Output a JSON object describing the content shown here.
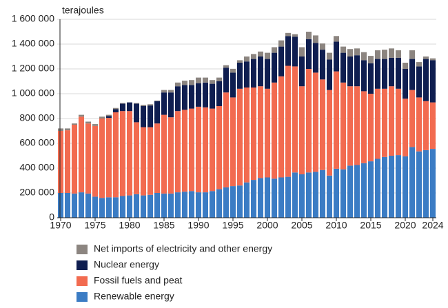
{
  "chart_data": {
    "type": "stacked_bar",
    "y_label": "terajoules",
    "x": [
      1970,
      1971,
      1972,
      1973,
      1974,
      1975,
      1976,
      1977,
      1978,
      1979,
      1980,
      1981,
      1982,
      1983,
      1984,
      1985,
      1986,
      1987,
      1988,
      1989,
      1990,
      1991,
      1992,
      1993,
      1994,
      1995,
      1996,
      1997,
      1998,
      1999,
      2000,
      2001,
      2002,
      2003,
      2004,
      2005,
      2006,
      2007,
      2008,
      2009,
      2010,
      2011,
      2012,
      2013,
      2014,
      2015,
      2016,
      2017,
      2018,
      2019,
      2020,
      2021,
      2022,
      2023,
      2024
    ],
    "xlim": [
      1969.5,
      2024.5
    ],
    "xticks": [
      1970,
      1975,
      1980,
      1985,
      1990,
      1995,
      2000,
      2005,
      2010,
      2015,
      2020,
      2024
    ],
    "ylim": [
      0,
      1600000
    ],
    "yticks": [
      0,
      {
        "value": 200000,
        "label": "200 000"
      },
      {
        "value": 400000,
        "label": "400 000"
      },
      {
        "value": 600000,
        "label": "600 000"
      },
      {
        "value": 800000,
        "label": "800 000"
      },
      {
        "value": 1000000,
        "label": "1 000 000"
      },
      {
        "value": 1200000,
        "label": "1 200 000"
      },
      {
        "value": 1400000,
        "label": "1 400 000"
      },
      {
        "value": 1600000,
        "label": "1 600 000"
      }
    ],
    "grid": true,
    "series": [
      {
        "name": "Renewable energy",
        "color": "#3b7cc4",
        "values": [
          200000,
          200000,
          195000,
          205000,
          195000,
          170000,
          160000,
          165000,
          165000,
          175000,
          180000,
          190000,
          180000,
          185000,
          200000,
          195000,
          195000,
          205000,
          210000,
          215000,
          205000,
          205000,
          215000,
          230000,
          245000,
          255000,
          260000,
          285000,
          305000,
          320000,
          325000,
          315000,
          325000,
          330000,
          365000,
          350000,
          365000,
          370000,
          385000,
          340000,
          395000,
          390000,
          420000,
          425000,
          440000,
          455000,
          475000,
          490000,
          500000,
          505000,
          495000,
          570000,
          535000,
          545000,
          555000
        ]
      },
      {
        "name": "Fossil fuels and peat",
        "color": "#f26b50",
        "values": [
          500000,
          505000,
          555000,
          610000,
          565000,
          570000,
          640000,
          640000,
          685000,
          685000,
          680000,
          580000,
          550000,
          545000,
          560000,
          635000,
          615000,
          655000,
          660000,
          665000,
          690000,
          685000,
          665000,
          670000,
          765000,
          715000,
          780000,
          765000,
          745000,
          740000,
          715000,
          775000,
          815000,
          895000,
          855000,
          710000,
          835000,
          800000,
          730000,
          690000,
          785000,
          700000,
          640000,
          635000,
          580000,
          545000,
          565000,
          550000,
          560000,
          535000,
          465000,
          460000,
          435000,
          395000,
          375000
        ]
      },
      {
        "name": "Nuclear energy",
        "color": "#0f1e50",
        "values": [
          0,
          0,
          0,
          0,
          0,
          0,
          0,
          15000,
          25000,
          60000,
          70000,
          150000,
          170000,
          175000,
          180000,
          180000,
          200000,
          200000,
          200000,
          190000,
          190000,
          200000,
          200000,
          200000,
          200000,
          200000,
          210000,
          210000,
          230000,
          240000,
          240000,
          240000,
          240000,
          240000,
          240000,
          240000,
          240000,
          240000,
          240000,
          245000,
          240000,
          240000,
          240000,
          250000,
          250000,
          245000,
          240000,
          240000,
          230000,
          250000,
          240000,
          250000,
          250000,
          340000,
          340000
        ]
      },
      {
        "name": "Net imports of electricity and other energy",
        "color": "#8c8580",
        "values": [
          20000,
          15000,
          10000,
          15000,
          15000,
          15000,
          15000,
          10000,
          10000,
          5000,
          0,
          5000,
          10000,
          10000,
          5000,
          20000,
          20000,
          30000,
          35000,
          40000,
          45000,
          40000,
          30000,
          30000,
          20000,
          30000,
          20000,
          40000,
          40000,
          40000,
          50000,
          45000,
          50000,
          25000,
          20000,
          75000,
          60000,
          60000,
          50000,
          55000,
          45000,
          50000,
          60000,
          55000,
          65000,
          60000,
          70000,
          75000,
          75000,
          60000,
          50000,
          70000,
          35000,
          20000,
          15000
        ]
      }
    ]
  }
}
